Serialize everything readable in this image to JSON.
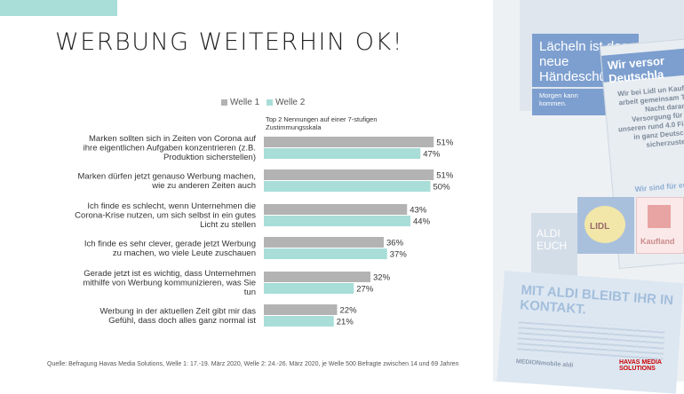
{
  "title": "WERBUNG WEITERHIN OK!",
  "legend": [
    {
      "label": "Welle 1",
      "color": "#b3b3b3"
    },
    {
      "label": "Welle 2",
      "color": "#a8ddd8"
    }
  ],
  "scale_note": "Top 2 Nennungen auf einer 7-stufigen Zustimmungsskala",
  "source": "Quelle: Befragung Havas Media Solutions, Welle 1: 17.-19. März 2020, Welle 2: 24.-26. März 2020, je Welle 500 Befragte zwischen 14 und 69 Jahren",
  "logo": {
    "line1": "HAVAS MEDIA",
    "line2": "SOLUTIONS"
  },
  "chart_data": {
    "type": "bar",
    "orientation": "horizontal",
    "categories": [
      [
        "Marken sollten sich in Zeiten von Corona auf",
        "ihre eigentlichen Aufgaben konzentrieren (z.B.",
        "Produktion sicherstellen)"
      ],
      [
        "Marken dürfen jetzt genauso Werbung machen,",
        "wie zu anderen Zeiten auch"
      ],
      [
        "Ich finde es schlecht, wenn Unternehmen die",
        "Corona-Krise nutzen, um sich selbst in ein gutes",
        "Licht zu stellen"
      ],
      [
        "Ich finde es sehr clever, gerade jetzt Werbung",
        "zu machen, wo viele Leute zuschauen"
      ],
      [
        "Gerade jetzt ist es wichtig, dass Unternehmen",
        "mithilfe von Werbung kommunizieren, was Sie",
        "tun"
      ],
      [
        "Werbung in der aktuellen Zeit gibt mir das",
        "Gefühl, dass doch alles ganz normal ist"
      ]
    ],
    "series": [
      {
        "name": "Welle 1",
        "color": "#b3b3b3",
        "values": [
          51,
          51,
          43,
          36,
          32,
          22
        ],
        "labels": [
          "51%",
          "51%",
          "43%",
          "36%",
          "32%",
          "22%"
        ]
      },
      {
        "name": "Welle 2",
        "color": "#a8ddd8",
        "values": [
          47,
          50,
          44,
          37,
          27,
          21
        ],
        "labels": [
          "47%",
          "50%",
          "44%",
          "37%",
          "27%",
          "21%"
        ]
      }
    ],
    "xlim": [
      0,
      100
    ],
    "unit": "%"
  },
  "collage": {
    "ad1_head": "Lächeln ist das neue Händeschü",
    "ad1_sub": "Morgen kann kommen.",
    "ad2_band": "Wir versor Deutschla",
    "ad2_body": "Wir bei Lidl un Kaufland arbeit gemeinsam Tag u Nacht daran, die Versorgung für eu in unseren rund 4.0 Filialen in ganz Deutschland sicherzustellen...",
    "ad2_foot": "Wir sind für euch da",
    "lidl": "LIDL",
    "kaufland": "Kaufland",
    "aldi": "ALDI EUCH",
    "ad3_head": "MIT ALDI BLEIBT IHR IN KONTAKT.",
    "ad3_mark": "MEDIONmobile aldi"
  }
}
